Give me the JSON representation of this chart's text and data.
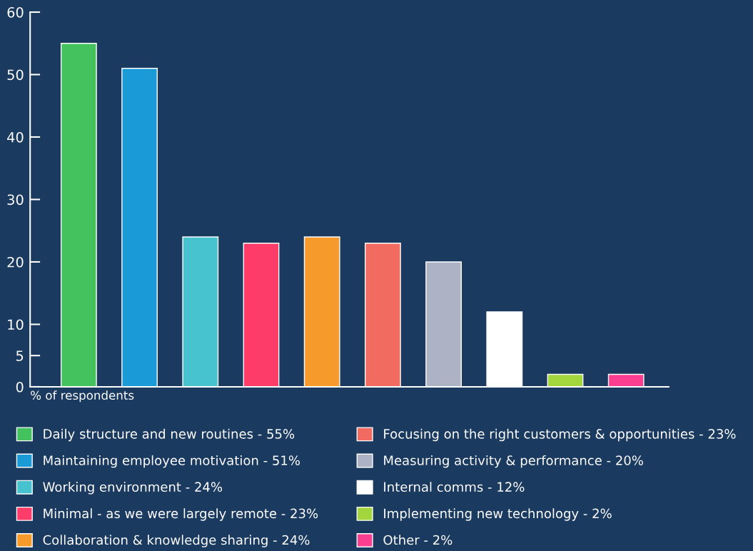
{
  "chart_data": {
    "type": "bar",
    "annotations": [
      "% of respondents"
    ],
    "categories": [
      null,
      null,
      null,
      null,
      null,
      null,
      null,
      null,
      null,
      null
    ],
    "series": [
      {
        "name": "Daily structure and new routines - 55%",
        "color": "#44c25e",
        "values": [
          55,
          null,
          null,
          null,
          null,
          null,
          null,
          null,
          null,
          null
        ]
      },
      {
        "name": "Maintaining employee motivation - 51%",
        "color": "#1a9bd7",
        "values": [
          null,
          51,
          null,
          null,
          null,
          null,
          null,
          null,
          null,
          null
        ]
      },
      {
        "name": "Working environment - 24%",
        "color": "#46c3cf",
        "values": [
          null,
          null,
          24,
          null,
          null,
          null,
          null,
          null,
          null,
          null
        ]
      },
      {
        "name": "Minimal - as we were largely remote - 23%",
        "color": "#fe3c6a",
        "values": [
          null,
          null,
          null,
          23,
          null,
          null,
          null,
          null,
          null,
          null
        ]
      },
      {
        "name": "Collaboration & knowledge sharing - 24%",
        "color": "#f79a2c",
        "values": [
          null,
          null,
          null,
          null,
          24,
          null,
          null,
          null,
          null,
          null
        ]
      },
      {
        "name": "Focusing on the right customers & opportunities - 23%",
        "color": "#f26b61",
        "values": [
          null,
          null,
          null,
          null,
          null,
          23,
          null,
          null,
          null,
          null
        ]
      },
      {
        "name": "Measuring activity & performance - 20%",
        "color": "#adb3c4",
        "values": [
          null,
          null,
          null,
          null,
          null,
          null,
          20,
          null,
          null,
          null
        ]
      },
      {
        "name": "Internal comms - 12%",
        "color": "#ffffff",
        "values": [
          null,
          null,
          null,
          null,
          null,
          null,
          null,
          12,
          null,
          null
        ]
      },
      {
        "name": "Implementing new technology - 2%",
        "color": "#a3d63c",
        "values": [
          null,
          null,
          null,
          null,
          null,
          null,
          null,
          null,
          2,
          null
        ]
      },
      {
        "name": "Other - 2%",
        "color": "#fb3e8f",
        "values": [
          null,
          null,
          null,
          null,
          null,
          null,
          null,
          null,
          null,
          2
        ]
      }
    ],
    "ylim": [
      0,
      60
    ],
    "yticks": [
      0,
      5,
      10,
      20,
      30,
      40,
      50,
      60
    ],
    "tick_labels": "y",
    "legend": "bottom",
    "grid": false
  }
}
